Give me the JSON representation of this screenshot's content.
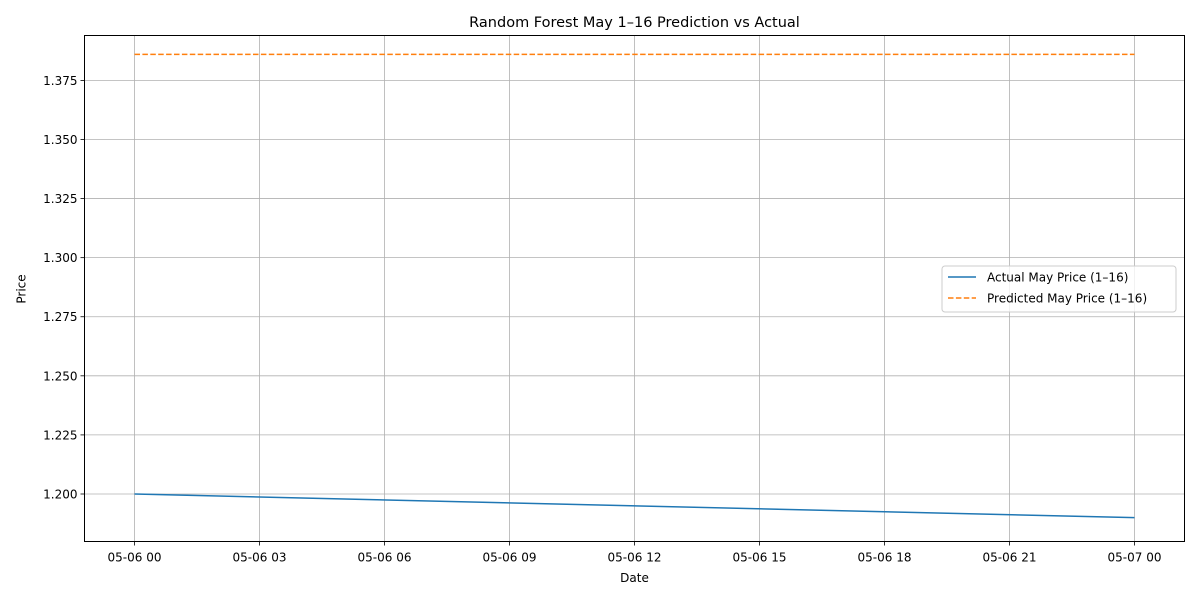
{
  "chart_data": {
    "type": "line",
    "title": "Random Forest May 1–16 Prediction vs Actual",
    "xlabel": "Date",
    "ylabel": "Price",
    "x_ticks": [
      "05-06 00",
      "05-06 03",
      "05-06 06",
      "05-06 09",
      "05-06 12",
      "05-06 15",
      "05-06 18",
      "05-06 21",
      "05-07 00"
    ],
    "x_tick_hours": [
      0,
      3,
      6,
      9,
      12,
      15,
      18,
      21,
      24
    ],
    "y_ticks": [
      "1.200",
      "1.225",
      "1.250",
      "1.275",
      "1.300",
      "1.325",
      "1.350",
      "1.375"
    ],
    "y_tick_values": [
      1.2,
      1.225,
      1.25,
      1.275,
      1.3,
      1.325,
      1.35,
      1.375
    ],
    "xlim_hours": [
      -1.2,
      25.2
    ],
    "ylim": [
      1.1799,
      1.394
    ],
    "grid": true,
    "legend_position": "center-right",
    "series": [
      {
        "name": "Actual May Price (1–16)",
        "color": "#1f77b4",
        "style": "solid",
        "x": [
          "05-06 00",
          "05-07 00"
        ],
        "x_hours": [
          0,
          24
        ],
        "values": [
          1.2,
          1.19
        ]
      },
      {
        "name": "Predicted May Price (1–16)",
        "color": "#ff7f0e",
        "style": "dashed",
        "x": [
          "05-06 00",
          "05-07 00"
        ],
        "x_hours": [
          0,
          24
        ],
        "values": [
          1.386,
          1.386
        ]
      }
    ]
  }
}
